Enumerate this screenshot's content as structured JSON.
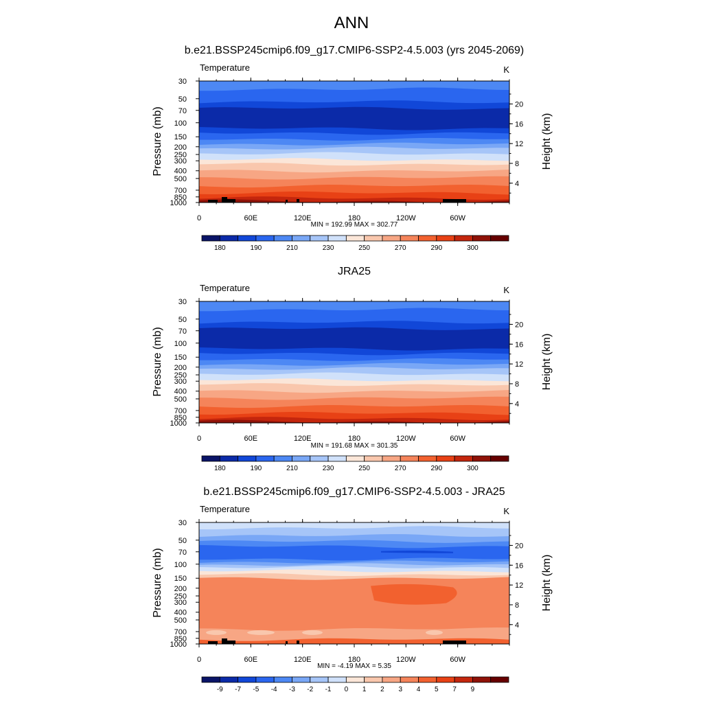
{
  "page_title": "ANN",
  "chart_data": [
    {
      "type": "heatmap",
      "title": "b.e21.BSSP245cmip6.f09_g17.CMIP6-SSP2-4.5.003 (yrs 2045-2069)",
      "left_label": "Temperature",
      "units": "K",
      "ylabel": "Pressure (mb)",
      "ylabel_right": "Height (km)",
      "xlabel": "",
      "x_ticks": [
        "0",
        "60E",
        "120E",
        "180",
        "120W",
        "60W"
      ],
      "y_ticks": [
        "30",
        "50",
        "70",
        "100",
        "150",
        "200",
        "250",
        "300",
        "400",
        "500",
        "700",
        "850",
        "1000"
      ],
      "y_ticks_right": [
        "20",
        "16",
        "12",
        "8",
        "4"
      ],
      "stats": "MIN = 192.99  MAX = 302.77",
      "min": 192.99,
      "max": 302.77,
      "colorbar_labels": [
        "180",
        "190",
        "210",
        "230",
        "250",
        "270",
        "290",
        "300"
      ],
      "colorbar_colors": [
        "#0a1467",
        "#0b2aa8",
        "#1147d8",
        "#2a66ef",
        "#4d88f4",
        "#79a7f6",
        "#a6c5f8",
        "#d0e1fa",
        "#fbe6d8",
        "#f9c7ad",
        "#f7a684",
        "#f5845a",
        "#f2612f",
        "#e84115",
        "#c4260d",
        "#8f1208",
        "#660000"
      ]
    },
    {
      "type": "heatmap",
      "title": "JRA25",
      "left_label": "Temperature",
      "units": "K",
      "ylabel": "Pressure (mb)",
      "ylabel_right": "Height (km)",
      "xlabel": "",
      "x_ticks": [
        "0",
        "60E",
        "120E",
        "180",
        "120W",
        "60W"
      ],
      "y_ticks": [
        "30",
        "50",
        "70",
        "100",
        "150",
        "200",
        "250",
        "300",
        "400",
        "500",
        "700",
        "850",
        "1000"
      ],
      "y_ticks_right": [
        "20",
        "16",
        "12",
        "8",
        "4"
      ],
      "stats": "MIN = 191.68  MAX = 301.35",
      "min": 191.68,
      "max": 301.35,
      "colorbar_labels": [
        "180",
        "190",
        "210",
        "230",
        "250",
        "270",
        "290",
        "300"
      ],
      "colorbar_colors": [
        "#0a1467",
        "#0b2aa8",
        "#1147d8",
        "#2a66ef",
        "#4d88f4",
        "#79a7f6",
        "#a6c5f8",
        "#d0e1fa",
        "#fbe6d8",
        "#f9c7ad",
        "#f7a684",
        "#f5845a",
        "#f2612f",
        "#e84115",
        "#c4260d",
        "#8f1208",
        "#660000"
      ]
    },
    {
      "type": "heatmap",
      "title": "b.e21.BSSP245cmip6.f09_g17.CMIP6-SSP2-4.5.003 - JRA25",
      "left_label": "Temperature",
      "units": "K",
      "ylabel": "Pressure (mb)",
      "ylabel_right": "Height (km)",
      "xlabel": "",
      "x_ticks": [
        "0",
        "60E",
        "120E",
        "180",
        "120W",
        "60W"
      ],
      "y_ticks": [
        "30",
        "50",
        "70",
        "100",
        "150",
        "200",
        "250",
        "300",
        "400",
        "500",
        "700",
        "850",
        "1000"
      ],
      "y_ticks_right": [
        "20",
        "16",
        "12",
        "8",
        "4"
      ],
      "stats": "MIN =  -4.19  MAX =   5.35",
      "min": -4.19,
      "max": 5.35,
      "colorbar_labels": [
        "-9",
        "-7",
        "-5",
        "-4",
        "-3",
        "-2",
        "-1",
        "0",
        "1",
        "2",
        "3",
        "4",
        "5",
        "7",
        "9"
      ],
      "colorbar_colors": [
        "#0a1467",
        "#0b2aa8",
        "#1147d8",
        "#2a66ef",
        "#4d88f4",
        "#79a7f6",
        "#a6c5f8",
        "#d0e1fa",
        "#fbe6d8",
        "#f9c7ad",
        "#f7a684",
        "#f5845a",
        "#f2612f",
        "#e84115",
        "#c4260d",
        "#8f1208",
        "#660000"
      ]
    }
  ]
}
